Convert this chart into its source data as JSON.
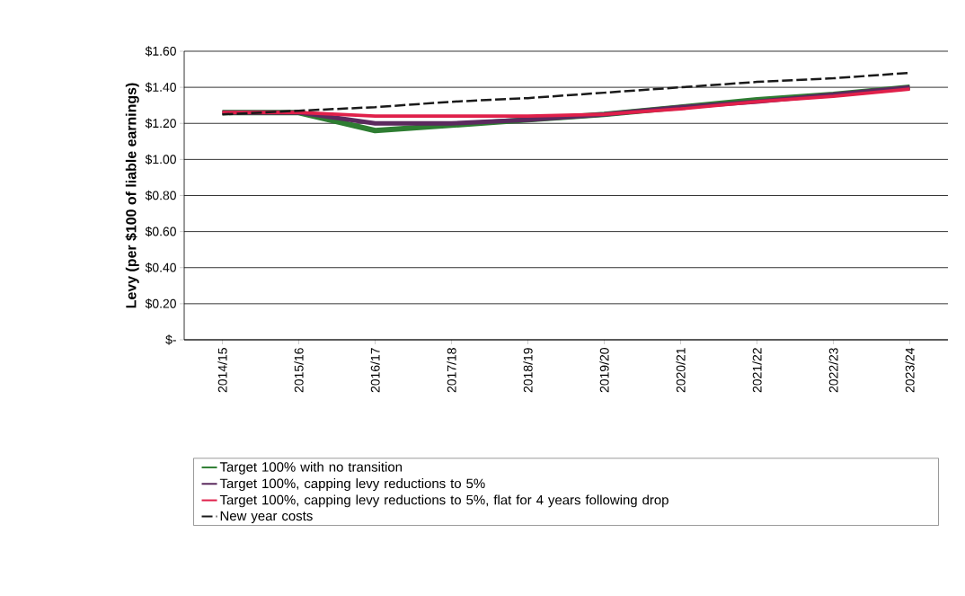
{
  "chart_data": {
    "type": "line",
    "ylabel": "Levy (per $100 of liable earnings)",
    "categories": [
      "2014/15",
      "2015/16",
      "2016/17",
      "2017/18",
      "2018/19",
      "2019/20",
      "2020/21",
      "2021/22",
      "2022/23",
      "2023/24"
    ],
    "series": [
      {
        "name": "Target 100% with no transition",
        "color": "#2e7d32",
        "values": [
          1.26,
          1.26,
          1.16,
          1.19,
          1.22,
          1.25,
          1.29,
          1.33,
          1.36,
          1.4
        ]
      },
      {
        "name": "Target 100%, capping levy reductions to 5%",
        "color": "#5b2a5e",
        "values": [
          1.26,
          1.26,
          1.2,
          1.2,
          1.22,
          1.25,
          1.29,
          1.32,
          1.36,
          1.4
        ]
      },
      {
        "name": "Target 100%, capping levy reductions to 5%, flat for 4 years following drop",
        "color": "#e0204a",
        "values": [
          1.26,
          1.26,
          1.24,
          1.24,
          1.24,
          1.25,
          1.28,
          1.32,
          1.35,
          1.39
        ]
      },
      {
        "name": "New year costs",
        "color": "#1a1a1a",
        "line_style": "dashed",
        "values": [
          1.25,
          1.27,
          1.29,
          1.32,
          1.34,
          1.37,
          1.4,
          1.43,
          1.45,
          1.48
        ]
      }
    ],
    "ylim": [
      0,
      1.6
    ],
    "yticks": [
      {
        "value": 0,
        "label": "$-"
      },
      {
        "value": 0.2,
        "label": "$0.20"
      },
      {
        "value": 0.4,
        "label": "$0.40"
      },
      {
        "value": 0.6,
        "label": "$0.60"
      },
      {
        "value": 0.8,
        "label": "$0.80"
      },
      {
        "value": 1.0,
        "label": "$1.00"
      },
      {
        "value": 1.2,
        "label": "$1.20"
      },
      {
        "value": 1.4,
        "label": "$1.40"
      },
      {
        "value": 1.6,
        "label": "$1.60"
      }
    ],
    "grid": "y",
    "legend": "bottom",
    "marker": "none"
  }
}
